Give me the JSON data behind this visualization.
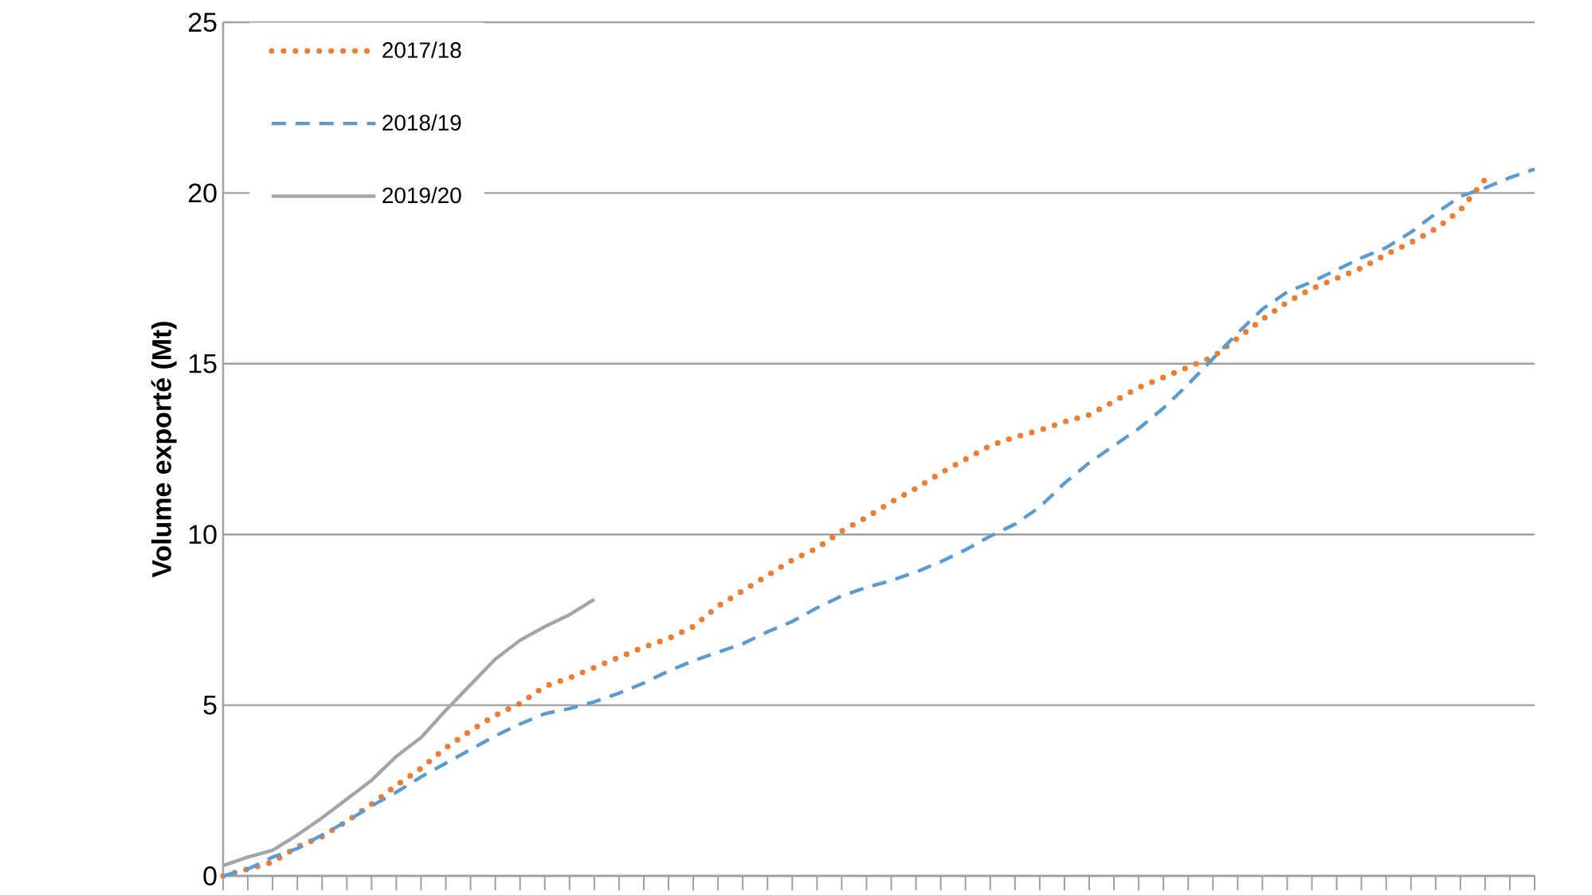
{
  "chart_data": {
    "type": "line",
    "ylabel": "Volume exporté (Mt)",
    "categories": [
      null,
      null,
      null,
      null,
      null,
      null,
      null,
      null,
      null,
      null,
      null,
      null,
      null,
      null,
      null,
      null,
      null,
      null,
      null,
      null,
      null,
      null,
      null,
      null,
      null,
      null,
      null,
      null,
      null,
      null,
      null,
      null,
      null,
      null,
      null,
      null,
      null,
      null,
      null,
      null,
      null,
      null,
      null,
      null,
      null,
      null,
      null,
      null,
      null,
      null,
      null,
      null,
      null,
      null
    ],
    "series": [
      {
        "name": "2017/18",
        "color": "#ed7d31",
        "line_style": "dotted",
        "values": [
          0,
          0.2,
          0.4,
          0.85,
          1.15,
          1.6,
          2.1,
          2.65,
          3.15,
          3.75,
          4.25,
          4.7,
          5.05,
          5.55,
          5.8,
          6.1,
          6.4,
          6.7,
          6.95,
          7.3,
          7.9,
          8.35,
          8.8,
          9.25,
          9.6,
          10.1,
          10.5,
          10.95,
          11.35,
          11.8,
          12.2,
          12.6,
          12.85,
          13.05,
          13.3,
          13.5,
          13.9,
          14.3,
          14.6,
          14.9,
          15.2,
          15.75,
          16.3,
          16.8,
          17.2,
          17.5,
          17.8,
          18.2,
          18.55,
          18.95,
          19.5,
          20.4,
          null,
          null
        ]
      },
      {
        "name": "2018/19",
        "color": "#5b9bd5",
        "line_style": "dashed",
        "values": [
          0,
          0.2,
          0.55,
          0.8,
          1.2,
          1.6,
          2.05,
          2.45,
          2.9,
          3.3,
          3.7,
          4.1,
          4.45,
          4.75,
          4.9,
          5.1,
          5.35,
          5.65,
          6.0,
          6.3,
          6.55,
          6.8,
          7.15,
          7.45,
          7.85,
          8.2,
          8.45,
          8.65,
          8.9,
          9.2,
          9.55,
          9.95,
          10.3,
          10.8,
          11.5,
          12.1,
          12.6,
          13.1,
          13.7,
          14.4,
          15.15,
          15.9,
          16.6,
          17.1,
          17.4,
          17.75,
          18.1,
          18.4,
          18.85,
          19.4,
          19.9,
          20.15,
          20.45,
          20.7
        ]
      },
      {
        "name": "2019/20",
        "color": "#a5a5a5",
        "line_style": "solid",
        "values": [
          0.3,
          0.55,
          0.75,
          1.2,
          1.7,
          2.25,
          2.8,
          3.5,
          4.05,
          4.85,
          5.6,
          6.35,
          6.9,
          7.3,
          7.65,
          8.1,
          null,
          null,
          null,
          null,
          null,
          null,
          null,
          null,
          null,
          null,
          null,
          null,
          null,
          null,
          null,
          null,
          null,
          null,
          null,
          null,
          null,
          null,
          null,
          null,
          null,
          null,
          null,
          null,
          null,
          null,
          null,
          null,
          null,
          null,
          null,
          null,
          null,
          null
        ]
      }
    ],
    "ylim": [
      0,
      25
    ],
    "yticks": [
      0,
      5,
      10,
      15,
      20,
      25
    ],
    "grid": "y",
    "legend": "top left",
    "tick_labels": "y"
  }
}
